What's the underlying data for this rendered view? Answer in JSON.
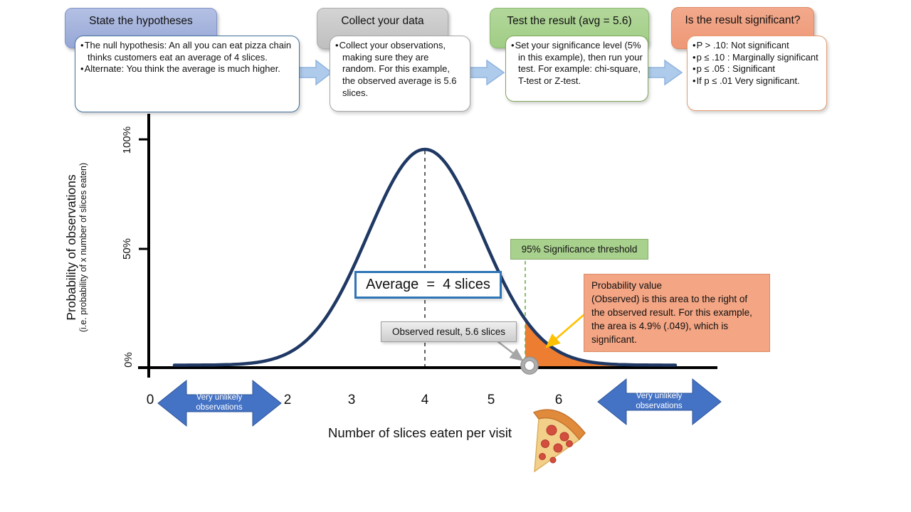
{
  "steps": [
    {
      "title": "State the hypotheses",
      "bullets": [
        "The null hypothesis: An all you can eat pizza chain thinks customers eat an average of 4 slices.",
        "Alternate: You think the average is much higher."
      ]
    },
    {
      "title": "Collect your data",
      "bullets": [
        "Collect your observations, making sure they are random.  For this example, the observed average is 5.6 slices."
      ]
    },
    {
      "title": "Test the result (avg = 5.6)",
      "bullets": [
        "Set your significance level (5% in this example), then run your test. For example: chi-square, T-test or Z-test."
      ]
    },
    {
      "title": "Is the result significant?",
      "bullets": [
        "P > .10: Not significant",
        "p ≤ .10 : Marginally significant",
        "p ≤ .05 : Significant",
        "If p ≤ .01 Very significant."
      ]
    }
  ],
  "chart": {
    "y_axis_title": "Probability of observations",
    "y_axis_subtitle": "(i.e. probability of x number of slices eaten)",
    "y_ticks": [
      "100%",
      "50%",
      "0%"
    ],
    "x_ticks": [
      "0",
      "2",
      "3",
      "4",
      "5",
      "6"
    ],
    "x_axis_title": "Number of slices eaten per visit",
    "average_label": "Average  =  4 slices",
    "observed_label": "Observed result, 5.6 slices",
    "threshold_label": "95% Significance threshold",
    "probability_note": "Probability value\n(Observed) is this area to the right of the observed result. For this example, the area is 4.9% (.049), which is significant.",
    "unlikely_left": "Very unlikely\nobservations",
    "unlikely_right": "Very unlikely\nobservations"
  },
  "chart_data": {
    "type": "area",
    "distribution": "normal (bell curve)",
    "mean": 4,
    "std_dev": 0.84,
    "observed_result": 5.6,
    "significance_level": "5% (95% threshold)",
    "p_value": 0.049,
    "shaded_region": "area under curve to the right of the 95% significance threshold (≈5.5 to 6+ slices)",
    "x_ticks": [
      0,
      2,
      3,
      4,
      5,
      6
    ],
    "y_ticks": [
      "0%",
      "50%",
      "100%"
    ],
    "xlabel": "Number of slices eaten per visit",
    "ylabel": "Probability of observations (i.e. probability of x number of slices eaten)",
    "annotations": [
      "Average = 4 slices",
      "Observed result, 5.6 slices",
      "95% Significance threshold",
      "Very unlikely observations (both tails)"
    ]
  },
  "colors": {
    "curve": "#1F3864",
    "shaded_area": "#ED7D31",
    "threshold_line": "#70AD47",
    "mean_line": "#3B3B3B",
    "axis": "#000000",
    "step1_header": "#9FAEDA",
    "step2_header": "#C9C9C9",
    "step3_header": "#A9D18E",
    "step4_header": "#F0A183",
    "flow_arrow": "#AFCBEC",
    "tail_arrow": "#4472C4",
    "callout_arrow_yellow": "#FFC000",
    "callout_arrow_gray": "#A6A6A6",
    "observed_marker": "#ADADAD",
    "average_box_border": "#2E75B6",
    "green_label_fill": "#A9D18E",
    "orange_note_fill": "#F3A584",
    "gray_label_fill": "#D9D9D9"
  }
}
